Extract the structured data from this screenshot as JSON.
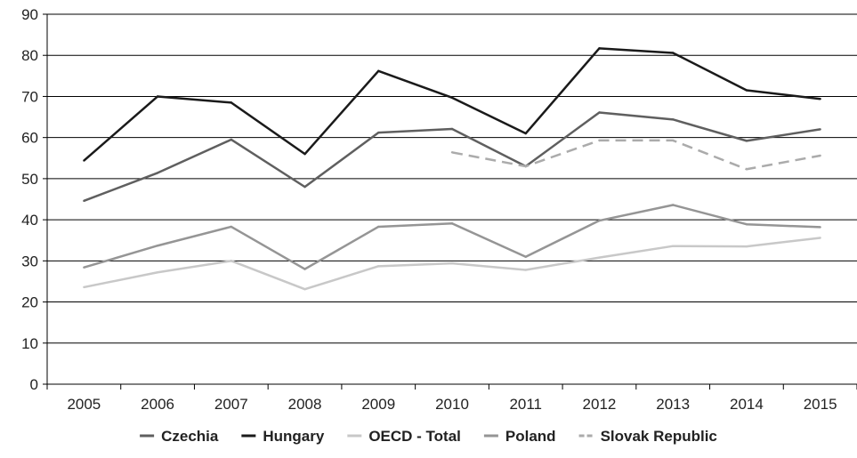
{
  "chart_data": {
    "type": "line",
    "title": "",
    "xlabel": "",
    "ylabel": "",
    "categories": [
      "2005",
      "2006",
      "2007",
      "2008",
      "2009",
      "2010",
      "2011",
      "2012",
      "2013",
      "2014",
      "2015"
    ],
    "ylim": [
      0,
      90
    ],
    "yticks": [
      0,
      10,
      20,
      30,
      40,
      50,
      60,
      70,
      80,
      90
    ],
    "grid": "horizontal",
    "legend_position": "bottom",
    "series": [
      {
        "name": "Czechia",
        "color": "#5f5f5f",
        "dash": "solid",
        "values": [
          44.6,
          51.4,
          59.5,
          48.0,
          61.2,
          62.1,
          53.0,
          66.1,
          64.4,
          59.2,
          62.0
        ]
      },
      {
        "name": "Hungary",
        "color": "#1a1a1a",
        "dash": "solid",
        "values": [
          54.4,
          70.0,
          68.5,
          56.0,
          76.2,
          69.7,
          61.0,
          81.7,
          80.6,
          71.5,
          69.4
        ]
      },
      {
        "name": "OECD - Total",
        "color": "#c8c8c8",
        "dash": "solid",
        "values": [
          23.6,
          27.2,
          30.0,
          23.1,
          28.7,
          29.4,
          27.8,
          30.8,
          33.6,
          33.5,
          35.6
        ]
      },
      {
        "name": "Poland",
        "color": "#959595",
        "dash": "solid",
        "values": [
          28.4,
          33.7,
          38.3,
          28.0,
          38.3,
          39.1,
          31.0,
          39.8,
          43.6,
          38.9,
          38.2
        ]
      },
      {
        "name": "Slovak Republic",
        "color": "#ababab",
        "dash": "dashed",
        "values": [
          null,
          null,
          null,
          null,
          null,
          56.4,
          53.0,
          59.3,
          59.3,
          52.3,
          55.6
        ]
      }
    ]
  }
}
